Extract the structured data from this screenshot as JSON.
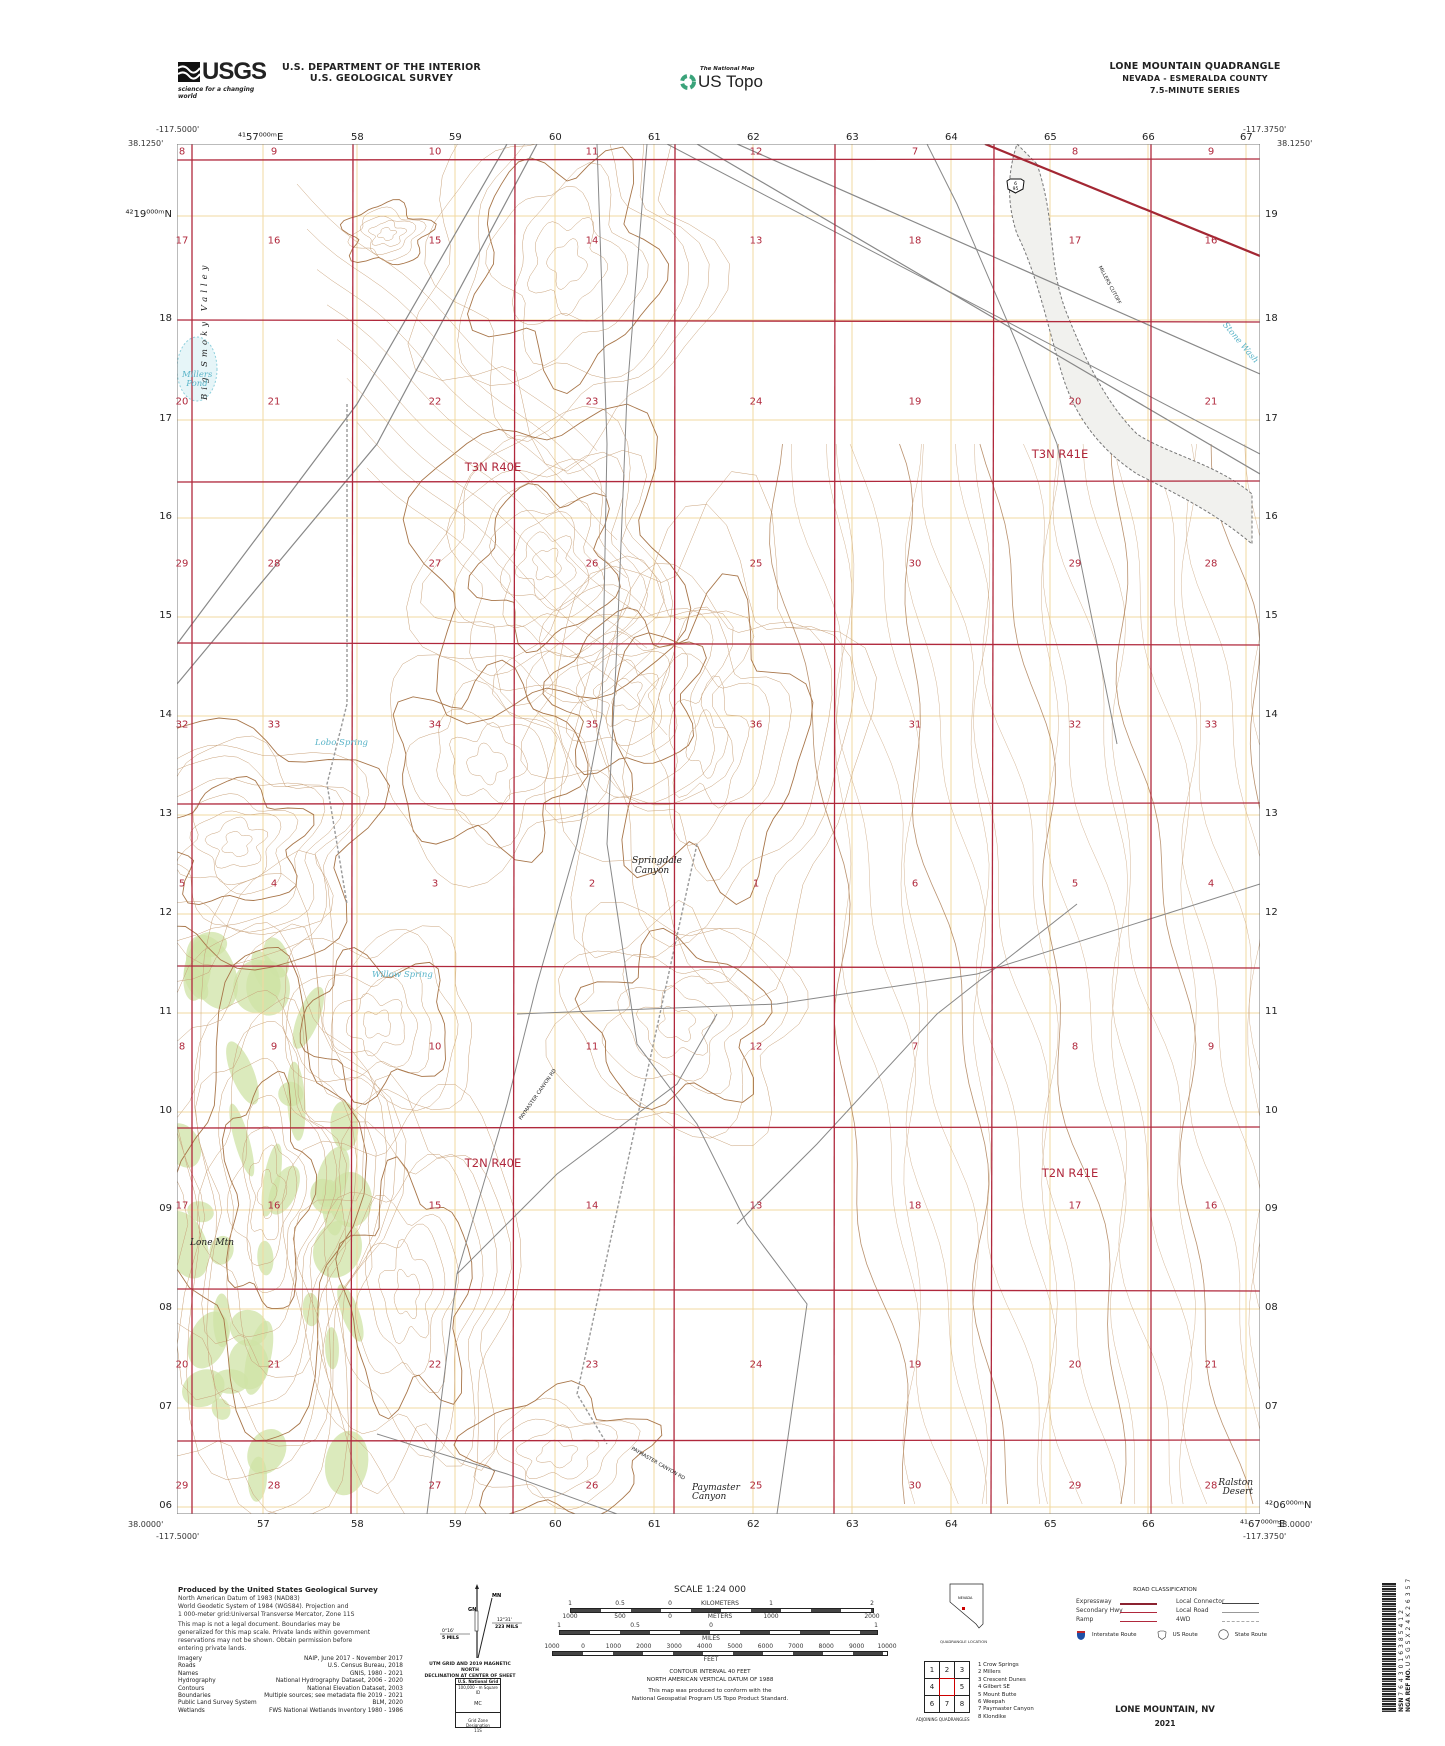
{
  "header": {
    "agency_logo_text": "USGS",
    "agency_tagline": "science for a changing world",
    "department": "U.S. DEPARTMENT OF THE INTERIOR",
    "survey": "U.S. GEOLOGICAL SURVEY",
    "national_map_small": "The National Map",
    "national_map_title": "US Topo",
    "quad_title": "LONE MOUNTAIN QUADRANGLE",
    "quad_state_county": "NEVADA - ESMERALDA COUNTY",
    "quad_series": "7.5-MINUTE SERIES"
  },
  "corners": {
    "west_lon": "-117.5000'",
    "east_lon": "-117.3750'",
    "north_lat": "38.1250'",
    "south_lat": "38.0000'"
  },
  "grid": {
    "top_eastings": [
      "⁴¹57⁰⁰⁰ᵐE",
      "58",
      "59",
      "60",
      "61",
      "62",
      "63",
      "64",
      "65",
      "66",
      "67"
    ],
    "bottom_eastings": [
      "57",
      "58",
      "59",
      "60",
      "61",
      "62",
      "63",
      "64",
      "65",
      "66",
      "⁴¹67⁰⁰⁰ᵐE"
    ],
    "left_northings": [
      "⁴²19⁰⁰⁰ᵐN",
      "18",
      "17",
      "16",
      "15",
      "14",
      "13",
      "12",
      "11",
      "10",
      "09",
      "08",
      "07",
      "06"
    ],
    "right_northings": [
      "19",
      "18",
      "17",
      "16",
      "15",
      "14",
      "13",
      "12",
      "11",
      "10",
      "09",
      "08",
      "07",
      "⁴²06⁰⁰⁰ᵐN"
    ]
  },
  "map": {
    "sections": [
      [
        "8",
        "9",
        "10",
        "11",
        "12",
        "7",
        "8",
        "9"
      ],
      [
        "17",
        "16",
        "15",
        "14",
        "13",
        "18",
        "17",
        "16"
      ],
      [
        "20",
        "21",
        "22",
        "23",
        "24",
        "19",
        "20",
        "21"
      ],
      [
        "29",
        "28",
        "27",
        "26",
        "25",
        "30",
        "29",
        "28"
      ],
      [
        "32",
        "33",
        "34",
        "35",
        "36",
        "31",
        "32",
        "33"
      ],
      [
        "5",
        "4",
        "3",
        "2",
        "1",
        "6",
        "5",
        "4"
      ],
      [
        "8",
        "9",
        "10",
        "11",
        "12",
        "7",
        "8",
        "9"
      ],
      [
        "17",
        "16",
        "15",
        "14",
        "13",
        "18",
        "17",
        "16"
      ],
      [
        "20",
        "21",
        "22",
        "23",
        "24",
        "19",
        "20",
        "21"
      ],
      [
        "29",
        "28",
        "27",
        "26",
        "25",
        "30",
        "29",
        "28"
      ]
    ],
    "townships": [
      "T3N R40E",
      "T3N R41E",
      "T2N R40E",
      "T2N R41E"
    ],
    "places": {
      "big_smoky_valley": "Big Smoky Valley",
      "millers_pond": "Millers Pond",
      "lobo_spring": "Lobo Spring",
      "willow_spring": "Willow Spring",
      "springdale_canyon": "Springdale Canyon",
      "lone_mtn": "Lone Mtn",
      "paymaster_canyon": "Paymaster Canyon",
      "ralston_desert": "Ralston Desert",
      "stone_wash": "Stone Wash",
      "millers_cutoff": "MILLERS CUTOFF",
      "paymaster_canyon_rd": "PAYMASTER CANYON RD",
      "us_route": "6\n95"
    },
    "colors": {
      "section_lines": "#b0283c",
      "contours": "#c9a27a",
      "index_contours": "#a8764a",
      "roads": "#8a8a8a",
      "water": "#5ab4c8",
      "vegetation": "#cfe3a6",
      "utm_grid": "#f2d9a0"
    }
  },
  "footer": {
    "producer": "Produced by the United States Geological Survey",
    "datum_lines": [
      "North American Datum of 1983 (NAD83)",
      "World Geodetic System of 1984 (WGS84).  Projection and",
      "1 000-meter grid:Universal Transverse Mercator, Zone 11S"
    ],
    "disclaimer": [
      "This map is not a legal document. Boundaries may be",
      "generalized for this map scale. Private lands within government",
      "reservations may not be shown. Obtain permission before",
      "entering private lands."
    ],
    "credits": [
      {
        "item": "Imagery",
        "source": "NAIP, June 2017 - November 2017"
      },
      {
        "item": "Roads",
        "source": "U.S. Census Bureau, 2018"
      },
      {
        "item": "Names",
        "source": "GNIS, 1980 - 2021"
      },
      {
        "item": "Hydrography",
        "source": "National Hydrography Dataset, 2006 - 2020"
      },
      {
        "item": "Contours",
        "source": "National Elevation Dataset, 2003"
      },
      {
        "item": "Boundaries",
        "source": "Multiple sources; see metadata file 2019 - 2021"
      },
      {
        "item": "Public Land Survey System",
        "source": "BLM, 2020"
      },
      {
        "item": "Wetlands",
        "source": "FWS National Wetlands Inventory 1980 - 1986"
      }
    ],
    "declination": {
      "mn": "MN",
      "gn": "GN",
      "grid_angle": "0°16'",
      "grid_mils": "5 MILS",
      "mag_angle": "12°31'",
      "mag_mils": "223 MILS",
      "caption1": "UTM GRID AND 2019 MAGNETIC NORTH",
      "caption2": "DECLINATION AT CENTER OF SHEET"
    },
    "usng": {
      "title": "U.S. National Grid",
      "square_label": "100,000 - m Square ID",
      "square_id": "MC",
      "gzd_label": "Grid Zone Designation",
      "gzd": "11S"
    },
    "scale": {
      "title": "SCALE 1:24 000",
      "km_ticks": [
        "1",
        "0.5",
        "0",
        "1",
        "2"
      ],
      "km_unit": "KILOMETERS",
      "m_ticks": [
        "1000",
        "500",
        "0",
        "1000",
        "2000"
      ],
      "m_unit": "METERS",
      "mi_ticks": [
        "1",
        "0.5",
        "0",
        "1"
      ],
      "mi_unit": "MILES",
      "ft_ticks": [
        "1000",
        "0",
        "1000",
        "2000",
        "3000",
        "4000",
        "5000",
        "6000",
        "7000",
        "8000",
        "9000",
        "10000"
      ],
      "ft_unit": "FEET"
    },
    "contour_interval": "CONTOUR INTERVAL 40 FEET",
    "vertical_datum": "NORTH AMERICAN VERTICAL DATUM OF 1988",
    "conform1": "This map was produced to conform with the",
    "conform2": "National Geospatial Program US Topo Product Standard.",
    "location": {
      "state": "NEVADA",
      "caption": "QUADRANGLE LOCATION"
    },
    "adjoining": {
      "cells": [
        "1",
        "2",
        "3",
        "4",
        "",
        "5",
        "6",
        "7",
        "8"
      ],
      "list": [
        "1 Crow Springs",
        "2 Millers",
        "3 Crescent Dunes",
        "4 Gilbert SE",
        "5 Mount Butte",
        "6 Weepah",
        "7 Paymaster Canyon",
        "8 Klondike"
      ],
      "caption": "ADJOINING QUADRANGLES"
    },
    "roads": {
      "title": "ROAD CLASSIFICATION",
      "left": [
        "Expressway",
        "Secondary Hwy",
        "Ramp"
      ],
      "right": [
        "Local Connector",
        "Local Road",
        "4WD"
      ],
      "routes": [
        "Interstate Route",
        "US Route",
        "State Route"
      ]
    },
    "sheet_title": "LONE MOUNTAIN,  NV",
    "year": "2021",
    "barcode": {
      "nsn_label": "NSN",
      "nsn": "7643016385412",
      "nga_label": "NGA REF NO.",
      "nga": "USGSX24K26357"
    }
  }
}
